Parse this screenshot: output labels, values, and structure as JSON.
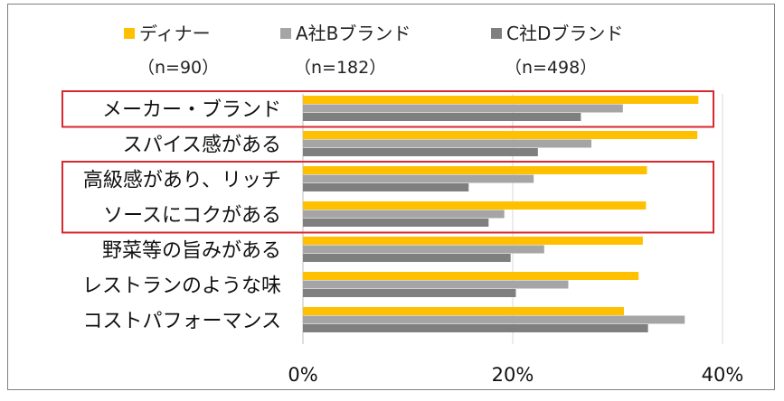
{
  "chart_data": {
    "type": "bar",
    "orientation": "horizontal",
    "categories": [
      "メーカー・ブランド",
      "スパイス感がある",
      "高級感があり、リッチ",
      "ソースにコクがある",
      "野菜等の旨みがある",
      "レストランのような味",
      "コストパフォーマンス"
    ],
    "series": [
      {
        "name": "ディナー",
        "sample": "（n=90）",
        "color": "#FFC000",
        "values": [
          37.7,
          37.6,
          32.8,
          32.7,
          32.4,
          32.0,
          30.6
        ]
      },
      {
        "name": "A社Bブランド",
        "sample": "（n=182）",
        "color": "#A5A5A5",
        "values": [
          30.5,
          27.5,
          22.0,
          19.2,
          23.0,
          25.3,
          36.4
        ]
      },
      {
        "name": "C社Dブランド",
        "sample": "（n=498）",
        "color": "#7F7F7F",
        "values": [
          26.5,
          22.4,
          15.8,
          17.7,
          19.8,
          20.3,
          32.9
        ]
      }
    ],
    "xlim": [
      0,
      40
    ],
    "xticks": [
      "0%",
      "20%",
      "40%"
    ],
    "grid": true,
    "legend_position": "top",
    "highlight_color": "#D9272E",
    "highlight_groups": [
      [
        0
      ],
      [
        2,
        3
      ]
    ]
  }
}
